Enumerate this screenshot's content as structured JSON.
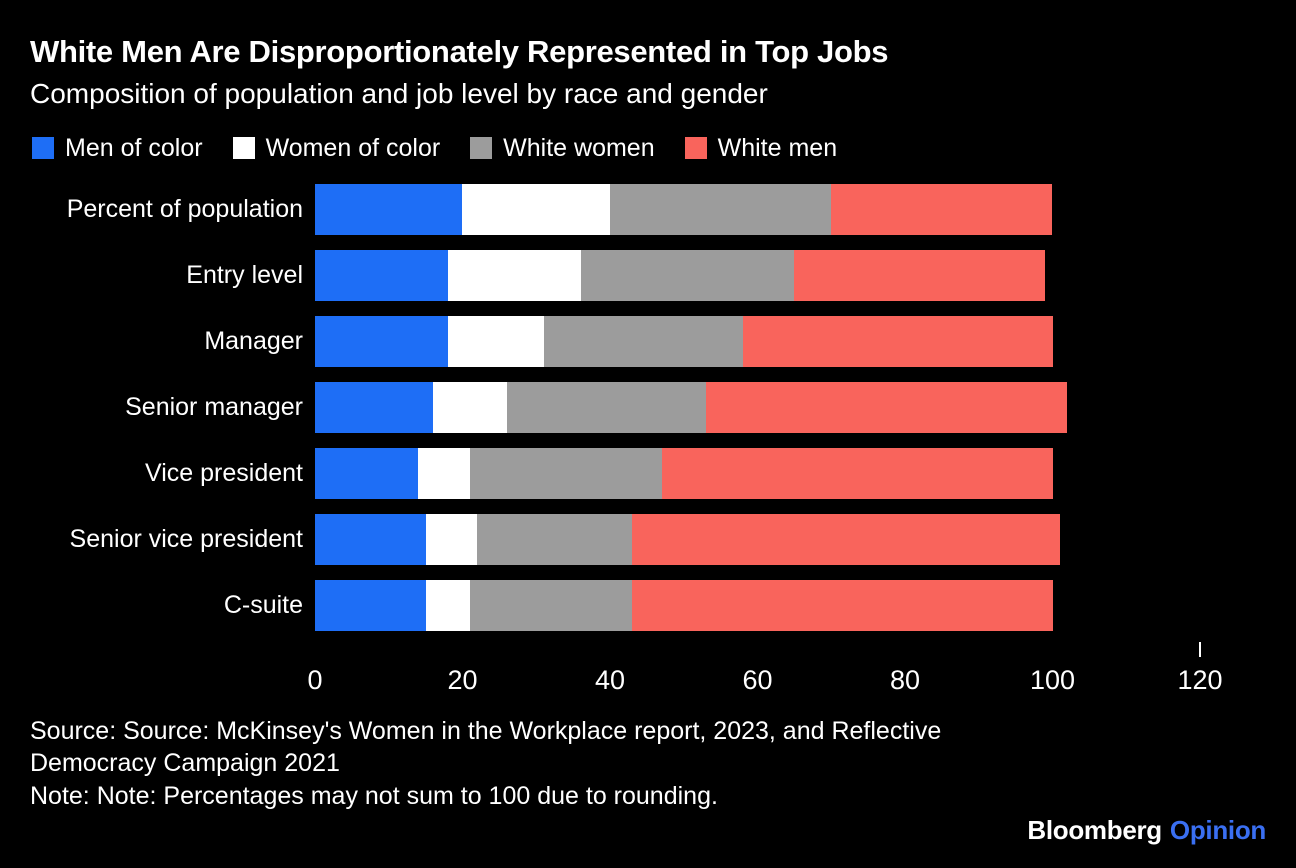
{
  "header": {
    "title": "White Men Are Disproportionately Represented in Top Jobs",
    "subtitle": "Composition of population and job level by race and gender"
  },
  "legend": [
    {
      "label": "Men of color",
      "color": "#1e6ef6"
    },
    {
      "label": "Women of color",
      "color": "#ffffff"
    },
    {
      "label": "White women",
      "color": "#9c9c9c"
    },
    {
      "label": "White men",
      "color": "#f9645c"
    }
  ],
  "chart_data": {
    "type": "bar",
    "orientation": "horizontal",
    "stacked": true,
    "title": "White Men Are Disproportionately Represented in Top Jobs",
    "subtitle": "Composition of population and job level by race and gender",
    "categories": [
      "Percent of population",
      "Entry level",
      "Manager",
      "Senior manager",
      "Vice president",
      "Senior vice president",
      "C-suite"
    ],
    "series": [
      {
        "name": "Men of color",
        "color": "#1e6ef6",
        "values": [
          20,
          18,
          18,
          16,
          14,
          15,
          15
        ]
      },
      {
        "name": "Women of color",
        "color": "#ffffff",
        "values": [
          20,
          18,
          13,
          10,
          7,
          7,
          6
        ]
      },
      {
        "name": "White women",
        "color": "#9c9c9c",
        "values": [
          30,
          29,
          27,
          27,
          26,
          21,
          22
        ]
      },
      {
        "name": "White men",
        "color": "#f9645c",
        "values": [
          30,
          34,
          42,
          49,
          53,
          58,
          57
        ]
      }
    ],
    "xlabel": "",
    "ylabel": "",
    "x_ticks": [
      0,
      20,
      40,
      60,
      80,
      100,
      120
    ],
    "xlim": [
      0,
      120
    ],
    "grid": false,
    "legend_position": "top",
    "unit": "percent"
  },
  "footer": {
    "source_line1": "Source: Source: McKinsey's Women in the Workplace report, 2023, and Reflective",
    "source_line2": "Democracy Campaign 2021",
    "note": "Note: Note: Percentages may not sum to 100 due to rounding.",
    "brand": {
      "bloomberg": "Bloomberg",
      "opinion": "Opinion",
      "opinion_color": "#3a6ff2"
    }
  }
}
